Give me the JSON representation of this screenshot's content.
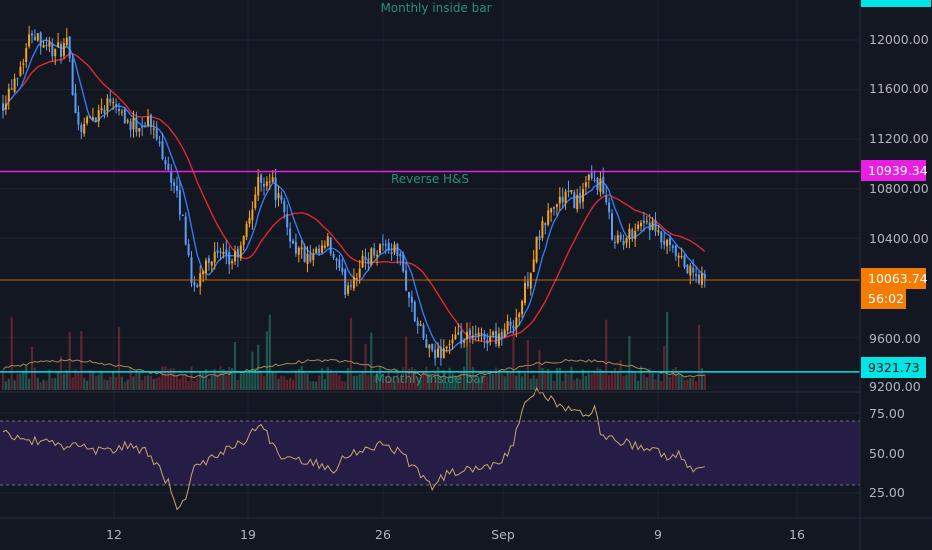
{
  "colors": {
    "background": "#131722",
    "grid": "#1e222d",
    "up": "#f7a21b",
    "down": "#5b9cf6",
    "baseline": "#3179f5",
    "conversion": "#e0282e",
    "resistance": "#e91ee3",
    "support": "#00e5e5",
    "current": "#f57c00",
    "rsi": "#c7a56a",
    "rsi_band": "#2a1f4d",
    "volume_up": "#26695d",
    "volume_down": "#7a2a36"
  },
  "annotations": {
    "top": "Monthly inside bar",
    "middle": "Reverse H&S",
    "bottom": "Monthly inside bar"
  },
  "price_axis": {
    "ticks": [
      "12000.00",
      "11600.00",
      "11200.00",
      "10800.00",
      "10400.00",
      "9600.00",
      "9200.00"
    ]
  },
  "rsi_axis": {
    "ticks": [
      "75.00",
      "50.00",
      "25.00"
    ]
  },
  "time_axis": {
    "ticks": [
      "12",
      "19",
      "26",
      "Sep",
      "9",
      "16"
    ]
  },
  "badges": {
    "resistance": "10939.34",
    "support": "9321.73",
    "current_price": "10063.74",
    "countdown": "56:02"
  },
  "chart_data": {
    "type": "candlestick",
    "price_ylim": [
      9180,
      12300
    ],
    "rsi_ylim": [
      10,
      95
    ],
    "levels": {
      "resistance": 10939.34,
      "support": 9321.73,
      "current": 10063.74,
      "rsi_upper": 70,
      "rsi_lower": 30
    },
    "price_keypoints": [
      [
        0,
        11500
      ],
      [
        6,
        11800
      ],
      [
        10,
        12080
      ],
      [
        18,
        11900
      ],
      [
        22,
        11950
      ],
      [
        26,
        11300
      ],
      [
        32,
        11400
      ],
      [
        38,
        11550
      ],
      [
        44,
        11300
      ],
      [
        50,
        11350
      ],
      [
        56,
        11050
      ],
      [
        62,
        10550
      ],
      [
        66,
        9950
      ],
      [
        70,
        10250
      ],
      [
        74,
        10250
      ],
      [
        78,
        10200
      ],
      [
        82,
        10300
      ],
      [
        88,
        10850
      ],
      [
        92,
        10900
      ],
      [
        96,
        10650
      ],
      [
        100,
        10350
      ],
      [
        106,
        10200
      ],
      [
        112,
        10350
      ],
      [
        118,
        10000
      ],
      [
        124,
        10200
      ],
      [
        130,
        10350
      ],
      [
        136,
        10300
      ],
      [
        142,
        9750
      ],
      [
        148,
        9430
      ],
      [
        154,
        9560
      ],
      [
        160,
        9580
      ],
      [
        166,
        9600
      ],
      [
        172,
        9620
      ],
      [
        178,
        9800
      ],
      [
        184,
        10350
      ],
      [
        188,
        10600
      ],
      [
        194,
        10750
      ],
      [
        198,
        10700
      ],
      [
        202,
        10850
      ],
      [
        206,
        10850
      ],
      [
        210,
        10450
      ],
      [
        214,
        10350
      ],
      [
        218,
        10500
      ],
      [
        222,
        10550
      ],
      [
        226,
        10400
      ],
      [
        230,
        10300
      ],
      [
        234,
        10200
      ],
      [
        238,
        10100
      ],
      [
        242,
        10050
      ]
    ],
    "rsi_keypoints": [
      [
        0,
        62
      ],
      [
        8,
        58
      ],
      [
        16,
        56
      ],
      [
        22,
        54
      ],
      [
        26,
        55
      ],
      [
        32,
        51
      ],
      [
        38,
        52
      ],
      [
        44,
        55
      ],
      [
        50,
        50
      ],
      [
        54,
        40
      ],
      [
        58,
        28
      ],
      [
        60,
        16
      ],
      [
        62,
        18
      ],
      [
        66,
        42
      ],
      [
        70,
        45
      ],
      [
        76,
        52
      ],
      [
        82,
        56
      ],
      [
        88,
        68
      ],
      [
        90,
        64
      ],
      [
        96,
        48
      ],
      [
        102,
        46
      ],
      [
        108,
        44
      ],
      [
        114,
        40
      ],
      [
        118,
        48
      ],
      [
        124,
        53
      ],
      [
        130,
        55
      ],
      [
        136,
        52
      ],
      [
        142,
        40
      ],
      [
        148,
        30
      ],
      [
        154,
        38
      ],
      [
        160,
        40
      ],
      [
        166,
        42
      ],
      [
        172,
        44
      ],
      [
        176,
        56
      ],
      [
        180,
        82
      ],
      [
        184,
        90
      ],
      [
        188,
        84
      ],
      [
        192,
        80
      ],
      [
        196,
        76
      ],
      [
        200,
        74
      ],
      [
        204,
        78
      ],
      [
        206,
        62
      ],
      [
        212,
        58
      ],
      [
        218,
        54
      ],
      [
        224,
        52
      ],
      [
        228,
        48
      ],
      [
        232,
        50
      ],
      [
        236,
        44
      ],
      [
        240,
        38
      ],
      [
        242,
        40
      ]
    ]
  }
}
